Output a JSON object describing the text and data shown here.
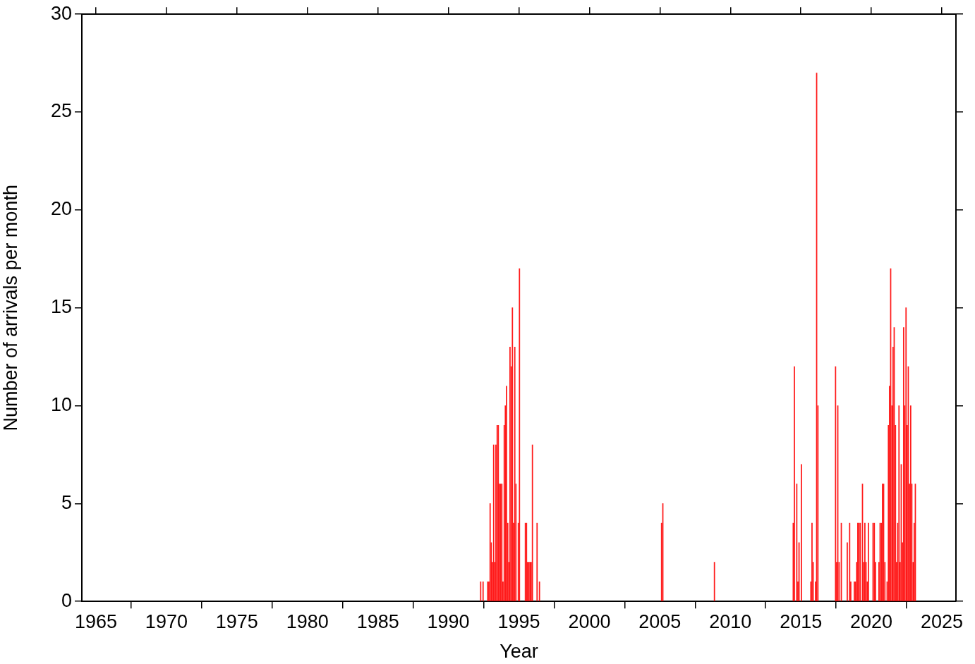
{
  "chart_data": {
    "type": "bar",
    "xlabel": "Year",
    "ylabel": "Number of arrivals per month",
    "color": "#ff1a1a",
    "grid": false,
    "legend": false,
    "xlim": [
      1964,
      2026
    ],
    "xticks": [
      1965,
      1970,
      1975,
      1980,
      1985,
      1990,
      1995,
      2000,
      2005,
      2010,
      2015,
      2020,
      2025
    ],
    "ylim": [
      0,
      30
    ],
    "yticks": [
      0,
      5,
      10,
      15,
      20,
      25,
      30
    ],
    "x": [
      1992.29,
      1992.46,
      1992.79,
      1992.87,
      1992.96,
      1993.04,
      1993.12,
      1993.21,
      1993.29,
      1993.37,
      1993.46,
      1993.54,
      1993.62,
      1993.71,
      1993.79,
      1993.87,
      1993.96,
      1994.04,
      1994.12,
      1994.21,
      1994.29,
      1994.37,
      1994.46,
      1994.54,
      1994.62,
      1994.71,
      1994.79,
      1994.96,
      1995.04,
      1995.46,
      1995.54,
      1995.62,
      1995.71,
      1995.79,
      1995.87,
      1995.96,
      1996.29,
      1996.46,
      2005.12,
      2005.21,
      2008.87,
      2014.46,
      2014.54,
      2014.71,
      2014.79,
      2014.87,
      2015.04,
      2015.71,
      2015.79,
      2015.87,
      2016.04,
      2016.12,
      2016.21,
      2017.46,
      2017.54,
      2017.62,
      2017.71,
      2017.87,
      2018.29,
      2018.46,
      2018.54,
      2018.79,
      2018.87,
      2018.96,
      2019.04,
      2019.12,
      2019.21,
      2019.37,
      2019.46,
      2019.54,
      2019.62,
      2019.71,
      2019.79,
      2020.12,
      2020.21,
      2020.29,
      2020.54,
      2020.62,
      2020.71,
      2020.79,
      2020.87,
      2020.96,
      2021.12,
      2021.21,
      2021.29,
      2021.37,
      2021.46,
      2021.54,
      2021.62,
      2021.71,
      2021.79,
      2021.87,
      2021.96,
      2022.04,
      2022.12,
      2022.21,
      2022.29,
      2022.37,
      2022.46,
      2022.54,
      2022.62,
      2022.71,
      2022.79,
      2022.87,
      2022.96,
      2023.04,
      2023.12
    ],
    "values": [
      1,
      1,
      1,
      1,
      5,
      3,
      2,
      8,
      2,
      8,
      9,
      9,
      6,
      6,
      6,
      1,
      9,
      10,
      11,
      4,
      2,
      13,
      12,
      15,
      4,
      13,
      6,
      4,
      17,
      4,
      4,
      2,
      2,
      2,
      2,
      8,
      4,
      1,
      4,
      5,
      2,
      4,
      12,
      6,
      1,
      3,
      7,
      1,
      4,
      2,
      1,
      27,
      10,
      12,
      2,
      10,
      2,
      4,
      3,
      4,
      1,
      1,
      1,
      2,
      4,
      4,
      4,
      6,
      2,
      4,
      2,
      1,
      4,
      4,
      4,
      2,
      2,
      4,
      4,
      6,
      6,
      2,
      1,
      9,
      11,
      17,
      10,
      13,
      14,
      9,
      2,
      4,
      10,
      2,
      7,
      3,
      14,
      10,
      15,
      9,
      12,
      6,
      10,
      6,
      2,
      4,
      6
    ]
  }
}
